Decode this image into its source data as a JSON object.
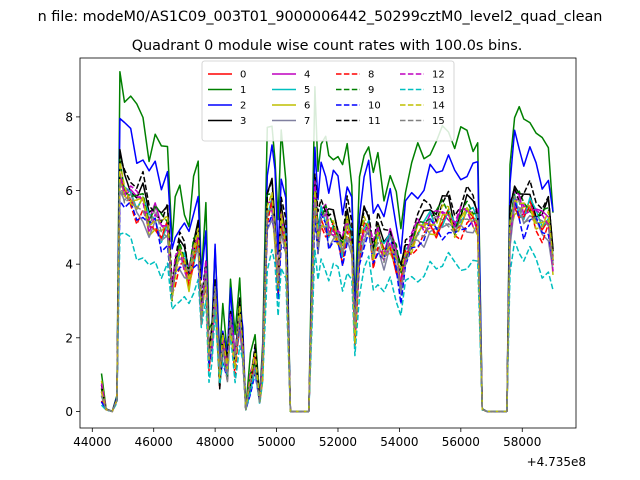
{
  "figure": {
    "suptitle": "n file: modeM0/AS1C09_003T01_9000006442_50299cztM0_level2_quad_clean"
  },
  "chart_data": {
    "type": "line",
    "title": "Quadrant 0 module wise count rates with 100.0s bins.",
    "xlabel": "",
    "ylabel": "",
    "x_offset_label": "+4.735e8",
    "xlim": [
      43600,
      59750
    ],
    "ylim": [
      -0.45,
      9.6
    ],
    "xticks": [
      44000,
      46000,
      48000,
      50000,
      52000,
      54000,
      56000,
      58000
    ],
    "xtick_labels": [
      "44000",
      "46000",
      "48000",
      "50000",
      "52000",
      "54000",
      "56000",
      "58000"
    ],
    "yticks": [
      0,
      2,
      4,
      6,
      8
    ],
    "ytick_labels": [
      "0",
      "2",
      "4",
      "6",
      "8"
    ],
    "grid": false,
    "legend_placement": "upper-center",
    "legend_columns": 4,
    "x": [
      44300,
      44450,
      44650,
      44800,
      44900,
      45050,
      45250,
      45450,
      45650,
      45850,
      46050,
      46250,
      46450,
      46600,
      46700,
      46850,
      47000,
      47150,
      47300,
      47450,
      47550,
      47700,
      47800,
      47900,
      48000,
      48150,
      48250,
      48400,
      48500,
      48650,
      48800,
      48900,
      49000,
      49150,
      49300,
      49450,
      49550,
      49700,
      49850,
      49950,
      50050,
      50150,
      50300,
      50450,
      50600,
      50700,
      50850,
      51050,
      51250,
      51350,
      51450,
      51600,
      51700,
      51850,
      52000,
      52150,
      52300,
      52450,
      52550,
      52700,
      52850,
      53000,
      53150,
      53300,
      53500,
      53700,
      53900,
      54050,
      54200,
      54400,
      54600,
      54800,
      55000,
      55200,
      55400,
      55600,
      55800,
      56000,
      56200,
      56400,
      56550,
      56700,
      56850,
      57050,
      57300,
      57500,
      57600,
      57750,
      57900,
      58050,
      58250,
      58450,
      58650,
      58850,
      59000
    ],
    "base": [
      0.5,
      0.05,
      0.0,
      0.3,
      6.3,
      5.9,
      5.8,
      5.5,
      5.6,
      5.0,
      5.2,
      4.8,
      5.0,
      3.2,
      3.8,
      4.2,
      4.0,
      3.6,
      4.2,
      4.6,
      2.6,
      3.8,
      1.4,
      1.9,
      3.3,
      0.9,
      1.8,
      1.1,
      2.5,
      1.3,
      2.6,
      1.6,
      0.05,
      0.8,
      1.4,
      0.25,
      1.2,
      5.3,
      5.6,
      4.8,
      3.3,
      5.1,
      4.5,
      0.0,
      0.0,
      0.0,
      0.0,
      0.0,
      5.8,
      4.6,
      5.2,
      5.1,
      4.8,
      4.9,
      4.7,
      4.3,
      5.0,
      4.5,
      2.0,
      4.3,
      4.9,
      5.0,
      4.2,
      4.7,
      4.2,
      4.6,
      4.0,
      3.4,
      4.2,
      4.5,
      4.8,
      4.9,
      5.1,
      5.0,
      5.2,
      5.3,
      4.9,
      5.1,
      5.3,
      5.2,
      5.1,
      0.05,
      0.0,
      0.0,
      0.0,
      0.0,
      4.9,
      5.7,
      5.5,
      5.3,
      5.5,
      5.2,
      5.0,
      5.1,
      4.0
    ],
    "series": [
      {
        "name": "0",
        "color": "#ff0000",
        "dash": "solid",
        "scale": 1.0,
        "jitter": 0.18
      },
      {
        "name": "1",
        "color": "#008000",
        "dash": "solid",
        "scale": 1.45,
        "jitter": 0.3
      },
      {
        "name": "2",
        "color": "#0000ff",
        "dash": "solid",
        "scale": 1.28,
        "jitter": 0.28
      },
      {
        "name": "3",
        "color": "#000000",
        "dash": "solid",
        "scale": 1.08,
        "jitter": 0.22
      },
      {
        "name": "4",
        "color": "#bf00bf",
        "dash": "solid",
        "scale": 1.04,
        "jitter": 0.2
      },
      {
        "name": "5",
        "color": "#00bfbf",
        "dash": "solid",
        "scale": 1.02,
        "jitter": 0.2
      },
      {
        "name": "6",
        "color": "#bfbf00",
        "dash": "solid",
        "scale": 1.0,
        "jitter": 0.22
      },
      {
        "name": "7",
        "color": "#8080a0",
        "dash": "solid",
        "scale": 0.97,
        "jitter": 0.2
      },
      {
        "name": "8",
        "color": "#ff0000",
        "dash": "dashed",
        "scale": 0.98,
        "jitter": 0.22
      },
      {
        "name": "9",
        "color": "#008000",
        "dash": "dashed",
        "scale": 1.05,
        "jitter": 0.24
      },
      {
        "name": "10",
        "color": "#0000ff",
        "dash": "dashed",
        "scale": 0.96,
        "jitter": 0.26
      },
      {
        "name": "11",
        "color": "#000000",
        "dash": "dashed",
        "scale": 1.1,
        "jitter": 0.24
      },
      {
        "name": "12",
        "color": "#bf00bf",
        "dash": "dashed",
        "scale": 1.03,
        "jitter": 0.22
      },
      {
        "name": "13",
        "color": "#00bfbf",
        "dash": "dashed",
        "scale": 0.78,
        "jitter": 0.2
      },
      {
        "name": "14",
        "color": "#bfbf00",
        "dash": "dashed",
        "scale": 1.02,
        "jitter": 0.22
      },
      {
        "name": "15",
        "color": "#808080",
        "dash": "dashed",
        "scale": 1.0,
        "jitter": 0.2
      }
    ]
  }
}
